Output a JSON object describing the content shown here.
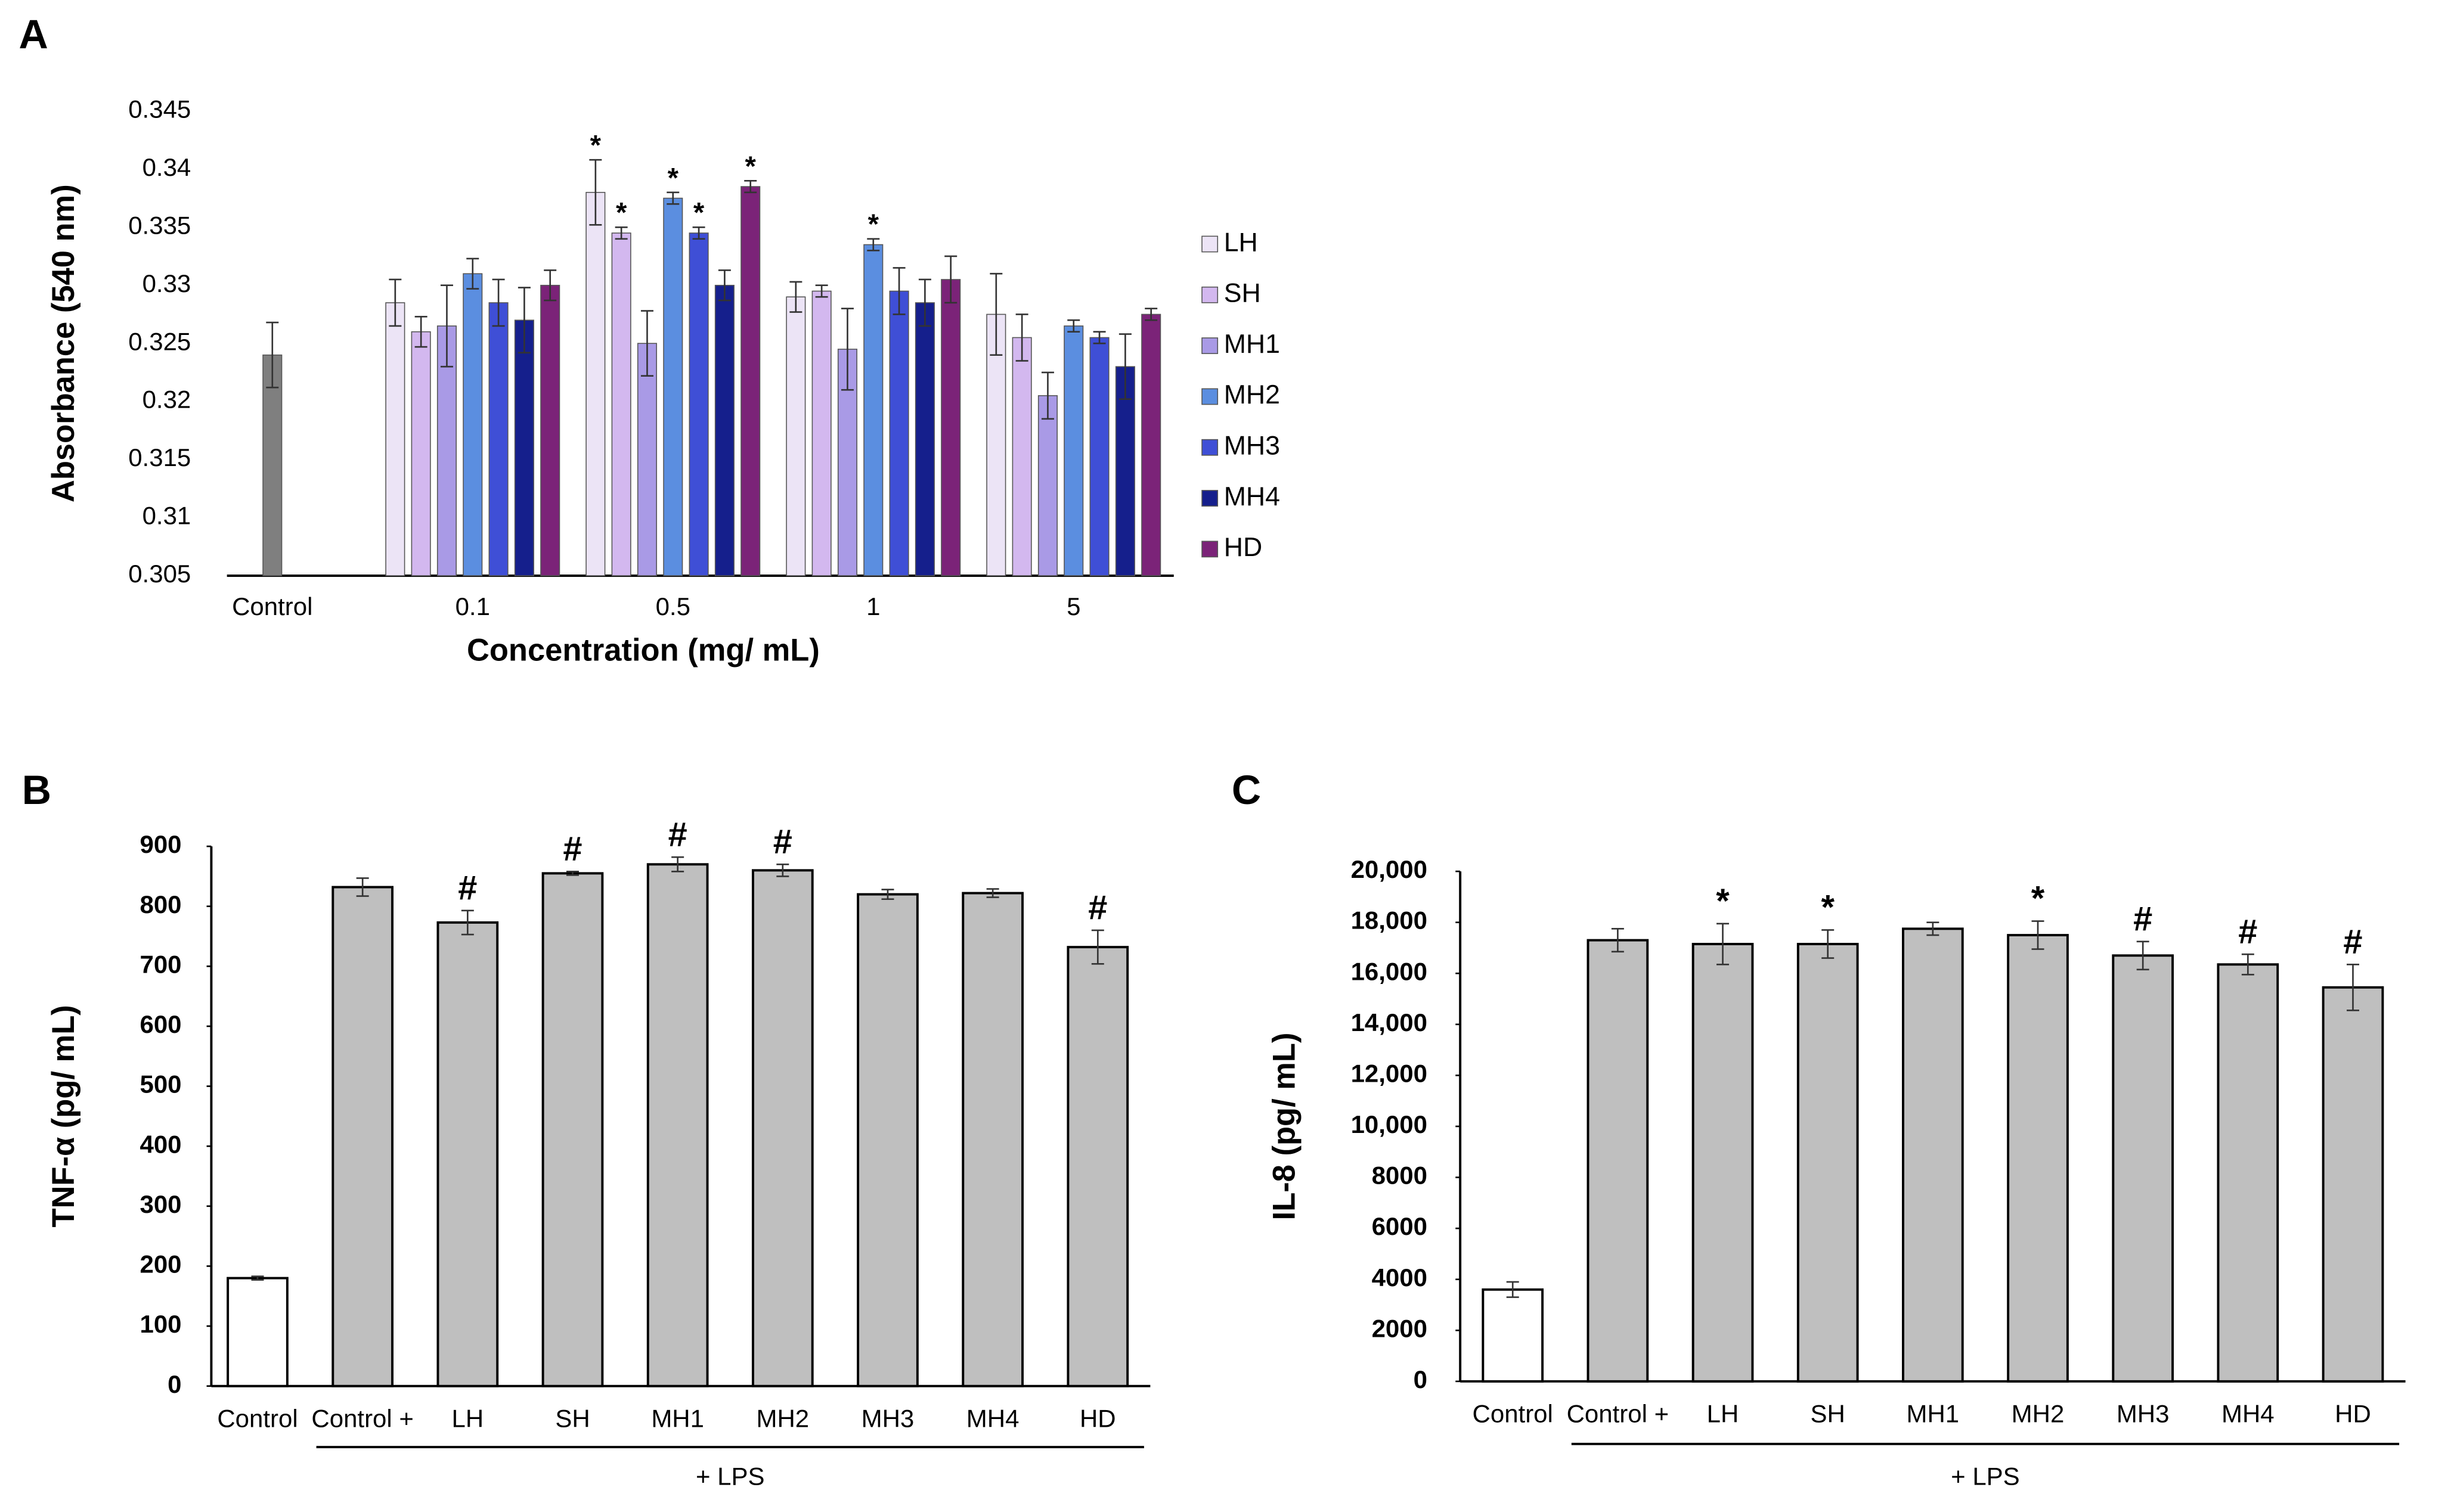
{
  "chart_data": [
    {
      "type": "grouped_bar",
      "panel": "A",
      "ylabel": "Absorbance (540 nm)",
      "xlabel": "Concentration (mg/ mL)",
      "categories": [
        "Control",
        "0.1",
        "0.5",
        "1",
        "5"
      ],
      "control_value": 0.324,
      "control_error": 0.0028,
      "control_color": "#7f7f7f",
      "series": [
        {
          "name": "LH",
          "color": "#ece4f6",
          "values": [
            null,
            0.3285,
            0.338,
            0.329,
            0.3275
          ],
          "errors": [
            null,
            0.002,
            0.0028,
            0.0013,
            0.0035
          ],
          "annotations": [
            null,
            null,
            "*",
            null,
            null
          ]
        },
        {
          "name": "SH",
          "color": "#d3b8ef",
          "values": [
            null,
            0.326,
            0.3345,
            0.3295,
            0.3255
          ],
          "errors": [
            null,
            0.0013,
            0.0005,
            0.0005,
            0.002
          ],
          "annotations": [
            null,
            null,
            "*",
            null,
            null
          ]
        },
        {
          "name": "MH1",
          "color": "#a99ae6",
          "values": [
            null,
            0.3265,
            0.325,
            0.3245,
            0.3205
          ],
          "errors": [
            null,
            0.0035,
            0.0028,
            0.0035,
            0.002
          ],
          "annotations": [
            null,
            null,
            null,
            null,
            null
          ]
        },
        {
          "name": "MH2",
          "color": "#5b8ee0",
          "values": [
            null,
            0.331,
            0.3375,
            0.3335,
            0.3265
          ],
          "errors": [
            null,
            0.0013,
            0.0005,
            0.0005,
            0.0005
          ],
          "annotations": [
            null,
            null,
            "*",
            "*",
            null
          ]
        },
        {
          "name": "MH3",
          "color": "#3f4fd6",
          "values": [
            null,
            0.3285,
            0.3345,
            0.3295,
            0.3255
          ],
          "errors": [
            null,
            0.002,
            0.0005,
            0.002,
            0.0005
          ],
          "annotations": [
            null,
            null,
            "*",
            null,
            null
          ]
        },
        {
          "name": "MH4",
          "color": "#151f8c",
          "values": [
            null,
            0.327,
            0.33,
            0.3285,
            0.323
          ],
          "errors": [
            null,
            0.0028,
            0.0013,
            0.002,
            0.0028
          ],
          "annotations": [
            null,
            null,
            null,
            null,
            null
          ]
        },
        {
          "name": "HD",
          "color": "#7b2378",
          "values": [
            null,
            0.33,
            0.3385,
            0.3305,
            0.3275
          ],
          "errors": [
            null,
            0.0013,
            0.0005,
            0.002,
            0.0005
          ],
          "annotations": [
            null,
            null,
            "*",
            null,
            null
          ]
        }
      ],
      "ylim": [
        0.305,
        0.345
      ],
      "yticks": [
        0.305,
        0.31,
        0.315,
        0.32,
        0.325,
        0.33,
        0.335,
        0.34,
        0.345
      ],
      "legend": "right"
    },
    {
      "type": "bar",
      "panel": "B",
      "ylabel": "TNF-α (pg/ mL)",
      "group_label": "+ LPS",
      "categories": [
        "Control",
        "Control +",
        "LH",
        "SH",
        "MH1",
        "MH2",
        "MH3",
        "MH4",
        "HD"
      ],
      "values": [
        180,
        832,
        773,
        855,
        870,
        860,
        820,
        822,
        732
      ],
      "errors": [
        3,
        15,
        20,
        3,
        12,
        10,
        8,
        7,
        28
      ],
      "annotations": [
        null,
        null,
        "#",
        "#",
        "#",
        "#",
        null,
        null,
        "#"
      ],
      "colors": [
        "#ffffff",
        "#bfbfbf",
        "#bfbfbf",
        "#bfbfbf",
        "#bfbfbf",
        "#bfbfbf",
        "#bfbfbf",
        "#bfbfbf",
        "#bfbfbf"
      ],
      "ylim": [
        0,
        900
      ],
      "yticks": [
        0,
        100,
        200,
        300,
        400,
        500,
        600,
        700,
        800,
        900
      ]
    },
    {
      "type": "bar",
      "panel": "C",
      "ylabel": "IL-8 (pg/ mL)",
      "group_label": "+ LPS",
      "categories": [
        "Control",
        "Control +",
        "LH",
        "SH",
        "MH1",
        "MH2",
        "MH3",
        "MH4",
        "HD"
      ],
      "values": [
        3600,
        17300,
        17150,
        17150,
        17750,
        17500,
        16700,
        16350,
        15450
      ],
      "errors": [
        300,
        450,
        800,
        550,
        250,
        550,
        550,
        400,
        900
      ],
      "annotations": [
        null,
        null,
        "*",
        "*",
        null,
        "*",
        "#",
        "#",
        "#"
      ],
      "colors": [
        "#ffffff",
        "#bfbfbf",
        "#bfbfbf",
        "#bfbfbf",
        "#bfbfbf",
        "#bfbfbf",
        "#bfbfbf",
        "#bfbfbf",
        "#bfbfbf"
      ],
      "ylim": [
        0,
        20000
      ],
      "yticks": [
        0,
        2000,
        4000,
        6000,
        8000,
        {
          "value": 10000,
          "label": "10,000"
        },
        {
          "value": 12000,
          "label": "12,000"
        },
        {
          "value": 14000,
          "label": "14,000"
        },
        {
          "value": 16000,
          "label": "16,000"
        },
        {
          "value": 18000,
          "label": "18,000"
        },
        {
          "value": 20000,
          "label": "20,000"
        }
      ]
    }
  ]
}
